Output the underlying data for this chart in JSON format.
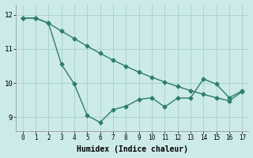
{
  "line1_x": [
    0,
    1,
    2,
    3,
    4,
    5,
    6,
    7,
    8,
    9,
    10,
    11,
    12,
    13,
    14,
    15,
    16,
    17
  ],
  "line1_y": [
    11.9,
    11.9,
    11.75,
    11.52,
    11.3,
    11.08,
    10.87,
    10.67,
    10.49,
    10.32,
    10.17,
    10.03,
    9.9,
    9.78,
    9.67,
    9.57,
    9.48,
    9.75
  ],
  "line2_x": [
    0,
    1,
    2,
    3,
    4,
    5,
    6,
    7,
    8,
    9,
    10,
    11,
    12,
    13,
    14,
    15,
    16,
    17
  ],
  "line2_y": [
    11.9,
    11.9,
    11.75,
    10.55,
    9.97,
    9.05,
    8.85,
    9.22,
    9.32,
    9.52,
    9.57,
    9.3,
    9.56,
    9.56,
    10.12,
    9.97,
    9.57,
    9.77
  ],
  "line_color": "#2e7d72",
  "bg_color": "#cceae8",
  "grid_color": "#aad4d0",
  "xlabel": "Humidex (Indice chaleur)",
  "xlabel_fontsize": 7,
  "ylabel_ticks": [
    9,
    10,
    11,
    12
  ],
  "xtick_labels": [
    "0",
    "1",
    "2",
    "3",
    "4",
    "5",
    "6",
    "7",
    "8",
    "9",
    "10",
    "11",
    "12",
    "13",
    "14",
    "15",
    "16",
    "17"
  ],
  "xlim": [
    -0.5,
    17.5
  ],
  "ylim": [
    8.6,
    12.3
  ],
  "marker": "D",
  "marker_size": 2.5,
  "line_width": 1.0
}
